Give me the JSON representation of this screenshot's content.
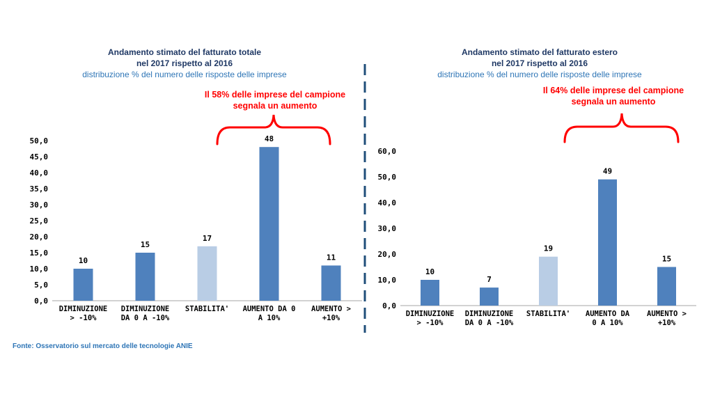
{
  "chart_data": [
    {
      "type": "bar",
      "title": "Andamento stimato del fatturato totale",
      "title_line2": "nel 2017 rispetto al 2016",
      "subtitle": "distribuzione % del numero delle risposte delle imprese",
      "annotation": [
        "Il 58% delle imprese del campione",
        "segnala un aumento"
      ],
      "categories": [
        [
          "DIMINUZIONE",
          "> -10%"
        ],
        [
          "DIMINUZIONE",
          "DA 0 A -10%"
        ],
        [
          "STABILITA'"
        ],
        [
          "AUMENTO DA 0",
          "A 10%"
        ],
        [
          "AUMENTO >",
          "+10%"
        ]
      ],
      "values": [
        10,
        15,
        17,
        48,
        11
      ],
      "value_labels": [
        "10",
        "15",
        "17",
        "48",
        "11"
      ],
      "bar_colors": [
        "#4f81bd",
        "#4f81bd",
        "#b9cde5",
        "#4f81bd",
        "#4f81bd"
      ],
      "yticks": [
        "0,0",
        "5,0",
        "10,0",
        "15,0",
        "20,0",
        "25,0",
        "30,0",
        "35,0",
        "40,0",
        "45,0",
        "50,0"
      ],
      "ylim": [
        0,
        50
      ],
      "grid": false
    },
    {
      "type": "bar",
      "title": "Andamento stimato del fatturato estero",
      "title_line2": "nel 2017 rispetto al 2016",
      "subtitle": "distribuzione % del numero delle risposte delle imprese",
      "annotation": [
        "Il 64% delle imprese del campione",
        "segnala un aumento"
      ],
      "categories": [
        [
          "DIMINUZIONE",
          "> -10%"
        ],
        [
          "DIMINUZIONE",
          "DA 0 A -10%"
        ],
        [
          "STABILITA'"
        ],
        [
          "AUMENTO DA",
          "0 A 10%"
        ],
        [
          "AUMENTO >",
          "+10%"
        ]
      ],
      "values": [
        10,
        7,
        19,
        49,
        15
      ],
      "value_labels": [
        "10",
        "7",
        "19",
        "49",
        "15"
      ],
      "bar_colors": [
        "#4f81bd",
        "#4f81bd",
        "#b9cde5",
        "#4f81bd",
        "#4f81bd"
      ],
      "yticks": [
        "0,0",
        "10,0",
        "20,0",
        "30,0",
        "40,0",
        "50,0",
        "60,0"
      ],
      "ylim": [
        0,
        60
      ],
      "grid": false
    }
  ],
  "source": "Fonte: Osservatorio sul mercato delle tecnologie ANIE",
  "colors": {
    "bracket": "#ff0000",
    "divider": "#1f4e79",
    "axis": "#a6a6a6"
  }
}
